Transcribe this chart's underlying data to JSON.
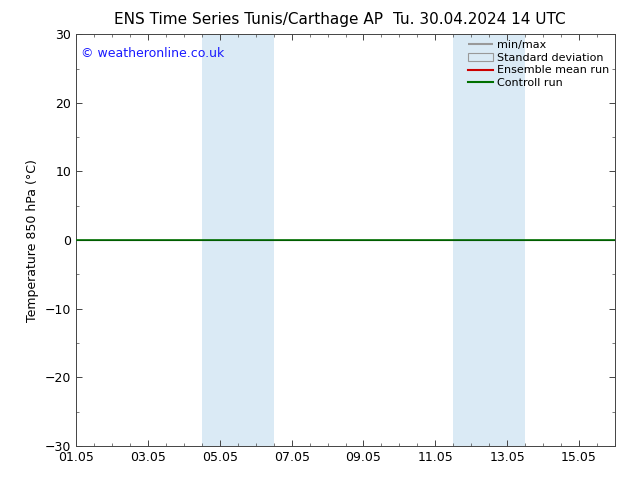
{
  "title_left": "ENS Time Series Tunis/Carthage AP",
  "title_right": "Tu. 30.04.2024 14 UTC",
  "ylabel": "Temperature 850 hPa (°C)",
  "ylim": [
    -30,
    30
  ],
  "yticks": [
    -30,
    -20,
    -10,
    0,
    10,
    20,
    30
  ],
  "xlim": [
    0,
    15
  ],
  "xtick_labels": [
    "01.05",
    "03.05",
    "05.05",
    "07.05",
    "09.05",
    "11.05",
    "13.05",
    "15.05"
  ],
  "xtick_positions": [
    0,
    2,
    4,
    6,
    8,
    10,
    12,
    14
  ],
  "shaded_bands": [
    {
      "xstart": 3.5,
      "xend": 5.5
    },
    {
      "xstart": 10.5,
      "xend": 12.5
    }
  ],
  "control_run_y": 0,
  "control_run_color": "#007000",
  "control_run_lw": 1.2,
  "ensemble_mean_color": "#cc0000",
  "minmax_color": "#999999",
  "stddev_color": "#daeaf5",
  "background_color": "#ffffff",
  "watermark_text": "© weatheronline.co.uk",
  "watermark_color": "#1a1aff",
  "legend_labels": [
    "min/max",
    "Standard deviation",
    "Ensemble mean run",
    "Controll run"
  ],
  "legend_colors": [
    "#999999",
    "#daeaf5",
    "#cc0000",
    "#007000"
  ],
  "title_fontsize": 11,
  "ylabel_fontsize": 9,
  "tick_fontsize": 9,
  "legend_fontsize": 8,
  "watermark_fontsize": 9,
  "shaded_color": "#daeaf5",
  "zero_line_color": "#000000",
  "zero_line_lw": 0.8,
  "figure_width": 6.34,
  "figure_height": 4.9,
  "dpi": 100
}
